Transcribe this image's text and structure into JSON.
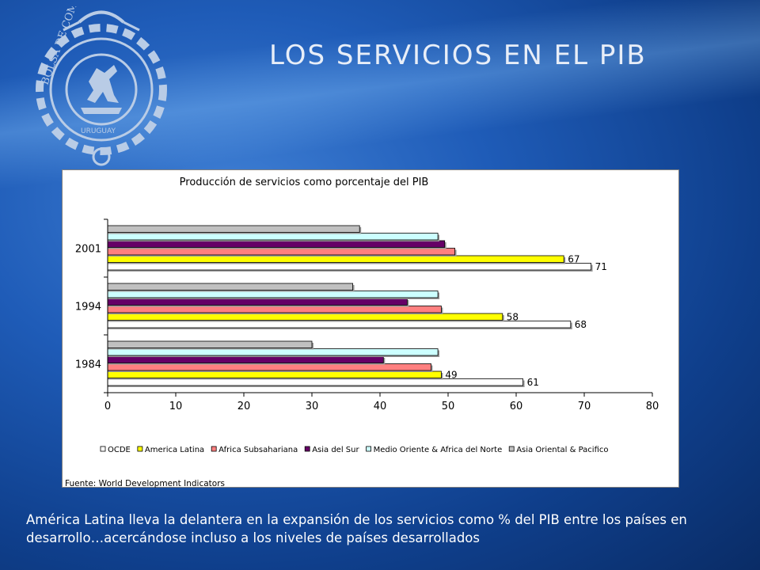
{
  "slide": {
    "title": "LOS SERVICIOS EN EL PIB",
    "caption": "América Latina lleva la delantera en la expansión de los servicios como % del PIB entre los países en desarrollo…acercándose incluso a los niveles de países desarrollados"
  },
  "logo": {
    "text_top": "BOLSA DE COMERCIO",
    "text_bottom": "URUGUAY"
  },
  "chart_data": {
    "type": "bar",
    "orientation": "horizontal",
    "title": "Producción de servicios como porcentaje del PIB",
    "categories": [
      "2001",
      "1994",
      "1984"
    ],
    "x_ticks": [
      0,
      10,
      20,
      30,
      40,
      50,
      60,
      70,
      80
    ],
    "xlim": [
      0,
      80
    ],
    "grid": false,
    "legend_position": "bottom",
    "source": "Fuente:  World Development Indicators",
    "series": [
      {
        "name": "OCDE",
        "color": "#ffffff",
        "values": [
          71,
          68,
          61
        ],
        "labels": [
          "71",
          "68",
          "61"
        ]
      },
      {
        "name": "America Latina",
        "color": "#ffff00",
        "values": [
          67,
          58,
          49
        ],
        "labels": [
          "67",
          "58",
          "49"
        ]
      },
      {
        "name": "Africa Subsahariana",
        "color": "#ff8080",
        "values": [
          51,
          49,
          47.5
        ],
        "labels": [
          "",
          "",
          ""
        ]
      },
      {
        "name": "Asia del Sur",
        "color": "#660066",
        "values": [
          49.5,
          44,
          40.5
        ],
        "labels": [
          "",
          "",
          ""
        ]
      },
      {
        "name": "Medio Oriente & Africa del Norte",
        "color": "#ccffff",
        "values": [
          48.5,
          48.5,
          48.5
        ],
        "labels": [
          "",
          "",
          ""
        ]
      },
      {
        "name": "Asia Oriental & Pacifico",
        "color": "#c0c0c0",
        "values": [
          37,
          36,
          30
        ],
        "labels": [
          "",
          "",
          ""
        ]
      }
    ]
  }
}
